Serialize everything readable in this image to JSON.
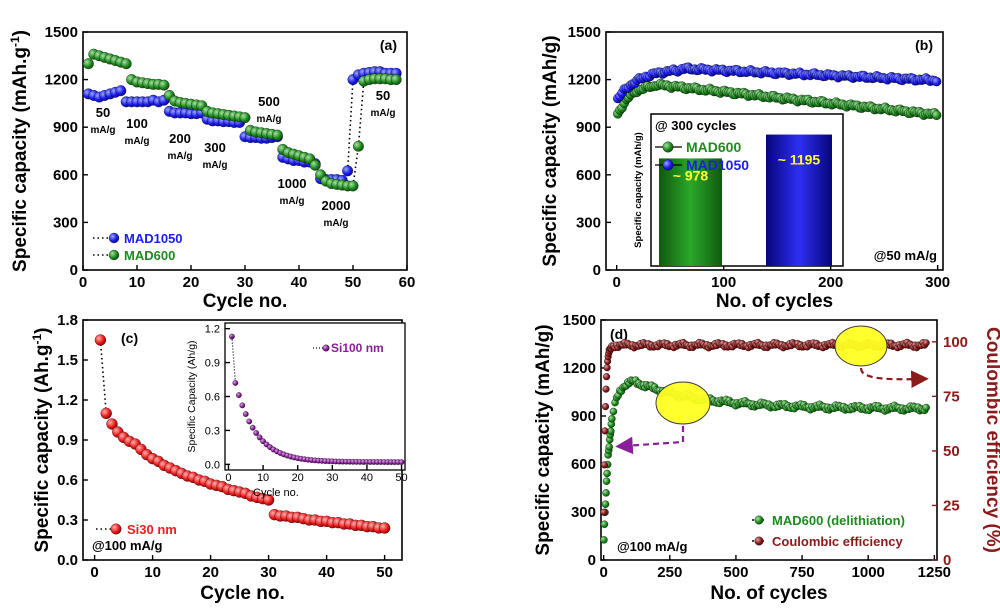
{
  "chart_data": [
    {
      "id": "a",
      "type": "scatter",
      "panel_label": "(a)",
      "xlabel": "Cycle no.",
      "ylabel": "Specific capacity (mAh.g",
      "ylabel_sup": "-1",
      "ylabel_end": ")",
      "xlim": [
        0,
        60
      ],
      "ylim": [
        0,
        1500
      ],
      "xticks": [
        "0",
        "10",
        "20",
        "30",
        "40",
        "50",
        "60"
      ],
      "yticks": [
        "0",
        "300",
        "600",
        "900",
        "1200",
        "1500"
      ],
      "series": [
        {
          "name": "MAD1050",
          "color": "#1c1cf0",
          "x": [
            1,
            2,
            3,
            4,
            5,
            6,
            7,
            8,
            9,
            10,
            11,
            12,
            13,
            14,
            15,
            16,
            17,
            18,
            19,
            20,
            21,
            22,
            23,
            24,
            25,
            26,
            27,
            28,
            29,
            30,
            31,
            32,
            33,
            34,
            35,
            36,
            37,
            38,
            39,
            40,
            41,
            42,
            43,
            44,
            45,
            46,
            47,
            48,
            49,
            50,
            51,
            52,
            53,
            54,
            55,
            56,
            57,
            58
          ],
          "y": [
            1110,
            1100,
            1090,
            1100,
            1110,
            1120,
            1130,
            1060,
            1060,
            1060,
            1060,
            1060,
            1070,
            1060,
            1070,
            1000,
            990,
            990,
            990,
            985,
            985,
            990,
            950,
            940,
            940,
            935,
            935,
            930,
            930,
            840,
            835,
            835,
            830,
            830,
            835,
            840,
            710,
            700,
            690,
            690,
            680,
            680,
            670,
            575,
            570,
            570,
            570,
            565,
            625,
            1200,
            1230,
            1240,
            1245,
            1250,
            1250,
            1240,
            1240,
            1240
          ]
        },
        {
          "name": "MAD600",
          "color": "#1f8a1f",
          "x": [
            1,
            2,
            3,
            4,
            5,
            6,
            7,
            8,
            9,
            10,
            11,
            12,
            13,
            14,
            15,
            16,
            17,
            18,
            19,
            20,
            21,
            22,
            23,
            24,
            25,
            26,
            27,
            28,
            29,
            30,
            31,
            32,
            33,
            34,
            35,
            36,
            37,
            38,
            39,
            40,
            41,
            42,
            43,
            44,
            45,
            46,
            47,
            48,
            49,
            50,
            51,
            52,
            53,
            54,
            55,
            56,
            57,
            58
          ],
          "y": [
            1300,
            1360,
            1350,
            1340,
            1330,
            1320,
            1310,
            1300,
            1200,
            1185,
            1180,
            1175,
            1170,
            1170,
            1165,
            1100,
            1065,
            1055,
            1050,
            1045,
            1040,
            1035,
            1000,
            990,
            985,
            980,
            975,
            970,
            965,
            960,
            880,
            870,
            865,
            860,
            855,
            850,
            760,
            740,
            730,
            720,
            710,
            700,
            660,
            600,
            560,
            545,
            540,
            535,
            530,
            530,
            780,
            1190,
            1200,
            1205,
            1205,
            1205,
            1200,
            1200
          ]
        }
      ],
      "annotations": [
        {
          "text": "50",
          "sub": "mA/g"
        },
        {
          "text": "100",
          "sub": "mA/g"
        },
        {
          "text": "200",
          "sub": "mA/g"
        },
        {
          "text": "300",
          "sub": "mA/g"
        },
        {
          "text": "500",
          "sub": "mA/g"
        },
        {
          "text": "1000",
          "sub": "mA/g"
        },
        {
          "text": "2000",
          "sub": "mA/g"
        },
        {
          "text": "50",
          "sub": "mA/g"
        }
      ],
      "legend": [
        "MAD1050",
        "MAD600"
      ]
    },
    {
      "id": "b",
      "type": "scatter",
      "panel_label": "(b)",
      "xlabel": "No. of cycles",
      "ylabel": "Specific capacity (mAh/g)",
      "xlim": [
        -10,
        305
      ],
      "ylim": [
        0,
        1500
      ],
      "xticks": [
        "0",
        "100",
        "200",
        "300"
      ],
      "yticks": [
        "0",
        "300",
        "600",
        "900",
        "1200",
        "1500"
      ],
      "series": [
        {
          "name": "MAD1050",
          "color": "#1c1cf0",
          "start": 1070,
          "peak": 1270,
          "peak_cycle": 60,
          "end": 1195
        },
        {
          "name": "MAD600",
          "color": "#1f8a1f",
          "start": 960,
          "peak": 1170,
          "peak_cycle": 35,
          "end": 978
        }
      ],
      "condition": "@50 mA/g",
      "inset": {
        "type": "bar",
        "title": "@ 300 cycles",
        "ylabel": "Specific capacity (mAh/g)",
        "categories": [
          "MAD600",
          "MAD1050"
        ],
        "values": [
          978,
          1195
        ],
        "value_labels": [
          "~ 978",
          "~ 1195"
        ],
        "colors": [
          "#1b7a1b",
          "#1a1ad8"
        ]
      }
    },
    {
      "id": "c",
      "type": "scatter",
      "panel_label": "(c)",
      "xlabel": "Cycle no.",
      "ylabel": "Specific capacity (Ah.g",
      "ylabel_sup": "-1",
      "ylabel_end": ")",
      "xlim": [
        -2,
        53
      ],
      "ylim": [
        0,
        1.8
      ],
      "xticks": [
        "0",
        "10",
        "20",
        "30",
        "40",
        "50"
      ],
      "yticks": [
        "0.0",
        "0.3",
        "0.6",
        "0.9",
        "1.2",
        "1.5",
        "1.8"
      ],
      "series": [
        {
          "name": "Si30 nm",
          "color": "#ee1c1c",
          "x": [
            1,
            2,
            3,
            4,
            5,
            6,
            7,
            8,
            9,
            10,
            11,
            12,
            13,
            14,
            15,
            16,
            17,
            18,
            19,
            20,
            21,
            22,
            23,
            24,
            25,
            26,
            27,
            28,
            29,
            30,
            31,
            32,
            33,
            34,
            35,
            36,
            37,
            38,
            39,
            40,
            41,
            42,
            43,
            44,
            45,
            46,
            47,
            48,
            49,
            50
          ],
          "y": [
            1.65,
            1.1,
            1.02,
            0.96,
            0.92,
            0.89,
            0.87,
            0.83,
            0.79,
            0.76,
            0.74,
            0.71,
            0.69,
            0.67,
            0.65,
            0.63,
            0.62,
            0.6,
            0.59,
            0.57,
            0.56,
            0.55,
            0.53,
            0.52,
            0.51,
            0.5,
            0.48,
            0.47,
            0.46,
            0.45,
            0.34,
            0.33,
            0.33,
            0.32,
            0.32,
            0.31,
            0.3,
            0.3,
            0.29,
            0.29,
            0.28,
            0.28,
            0.27,
            0.27,
            0.26,
            0.26,
            0.25,
            0.25,
            0.24,
            0.24
          ]
        }
      ],
      "condition": "@100 mA/g",
      "inset": {
        "type": "scatter",
        "xlabel": "Cycle no.",
        "ylabel": "Specific Capacity (Ah/g)",
        "xlim": [
          -1,
          51
        ],
        "ylim": [
          -0.05,
          1.25
        ],
        "xticks": [
          "0",
          "10",
          "20",
          "30",
          "40",
          "50"
        ],
        "yticks": [
          "0.0",
          "0.3",
          "0.6",
          "0.9",
          "1.2"
        ],
        "series": [
          {
            "name": "Si100 nm",
            "color": "#8a1e9a",
            "start": 1.13,
            "second": 0.72,
            "tau": 6.0,
            "floor": 0.02,
            "n": 50
          }
        ]
      }
    },
    {
      "id": "d",
      "type": "scatter",
      "panel_label": "(d)",
      "xlabel": "No. of cycles",
      "ylabel": "Specific capacity (mAh/g)",
      "ylabel_right": "Coulombic efficiency (%)",
      "xlim": [
        -10,
        1260
      ],
      "ylim": [
        0,
        1500
      ],
      "ylim_right": [
        0,
        110
      ],
      "xticks": [
        "0",
        "250",
        "500",
        "750",
        "1000",
        "1250"
      ],
      "yticks": [
        "0",
        "300",
        "600",
        "900",
        "1200",
        "1500"
      ],
      "yticks_right": [
        "0",
        "25",
        "50",
        "75",
        "100"
      ],
      "series": [
        {
          "name": "MAD600 (delithiation)",
          "color": "#1f8a1f",
          "start": 80,
          "peak": 1120,
          "peak_cycle": 110,
          "end": 945,
          "n": 1220
        },
        {
          "name": "Coulombic efficiency",
          "color": "#8b1a1a",
          "axis": "right",
          "start": 8,
          "plateau": 98.5,
          "n": 1220
        }
      ],
      "condition": "@100 mA/g"
    }
  ]
}
